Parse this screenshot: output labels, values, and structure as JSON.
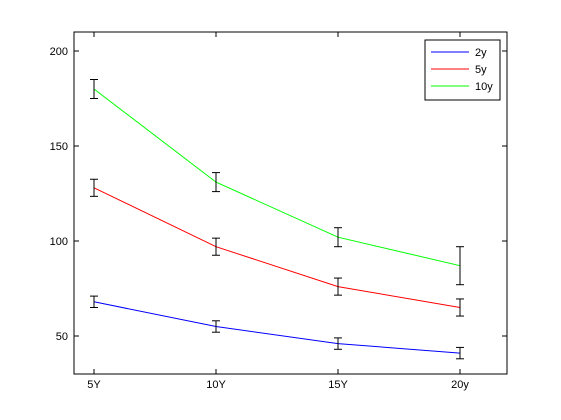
{
  "chart_data": {
    "type": "line",
    "title": "",
    "xlabel": "",
    "ylabel": "",
    "categories": [
      "5Y",
      "10Y",
      "15Y",
      "20y"
    ],
    "ylim": [
      30,
      210
    ],
    "yticks": [
      50,
      100,
      150,
      200
    ],
    "grid": false,
    "legend_position": "top-right",
    "series": [
      {
        "name": "2y",
        "color": "#0000ff",
        "values": [
          68,
          55,
          46,
          41
        ],
        "errors": [
          3,
          3,
          3,
          3
        ]
      },
      {
        "name": "5y",
        "color": "#ff0000",
        "values": [
          128,
          97,
          76,
          65
        ],
        "errors": [
          4.5,
          4.5,
          4.5,
          4.5
        ]
      },
      {
        "name": "10y",
        "color": "#00ff00",
        "values": [
          180,
          131,
          102,
          87
        ],
        "errors": [
          5,
          5,
          5,
          10
        ]
      }
    ]
  }
}
